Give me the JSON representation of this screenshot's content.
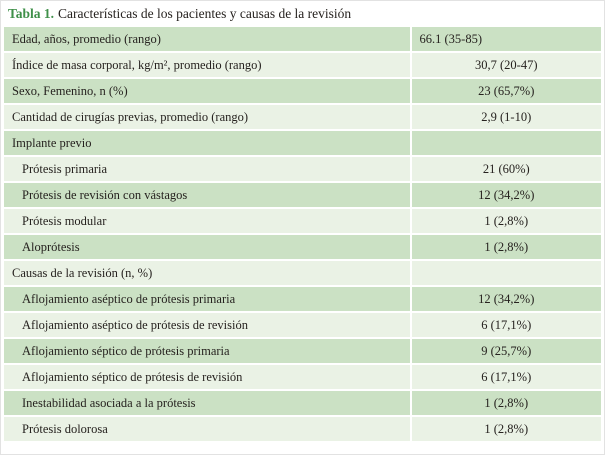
{
  "title": {
    "label": "Tabla 1.",
    "text": "Características de los pacientes y causas de la revisión"
  },
  "colors": {
    "green_row": "#cbe1c4",
    "light_row": "#eaf2e5",
    "title_green": "#3f9049",
    "text": "#26221f"
  },
  "table": {
    "rows": [
      {
        "label": "Edad, años, promedio (rango)",
        "value": "66.1 (35-85)",
        "indent": false,
        "section": false,
        "value_align": "left"
      },
      {
        "label": "Índice de masa corporal, kg/m², promedio (rango)",
        "value": "30,7 (20-47)",
        "indent": false,
        "section": false,
        "value_align": "center"
      },
      {
        "label": "Sexo, Femenino, n (%)",
        "value": "23 (65,7%)",
        "indent": false,
        "section": false,
        "value_align": "center"
      },
      {
        "label": "Cantidad de cirugías previas, promedio (rango)",
        "value": "2,9 (1-10)",
        "indent": false,
        "section": false,
        "value_align": "center"
      },
      {
        "label": "Implante previo",
        "value": "",
        "indent": false,
        "section": true,
        "value_align": "center"
      },
      {
        "label": "Prótesis primaria",
        "value": "21 (60%)",
        "indent": true,
        "section": false,
        "value_align": "center"
      },
      {
        "label": "Prótesis de revisión con vástagos",
        "value": "12 (34,2%)",
        "indent": true,
        "section": false,
        "value_align": "center"
      },
      {
        "label": "Prótesis modular",
        "value": "1 (2,8%)",
        "indent": true,
        "section": false,
        "value_align": "center"
      },
      {
        "label": "Aloprótesis",
        "value": "1 (2,8%)",
        "indent": true,
        "section": false,
        "value_align": "center"
      },
      {
        "label": "Causas de la revisión (n, %)",
        "value": "",
        "indent": false,
        "section": true,
        "value_align": "center"
      },
      {
        "label": "Aflojamiento aséptico de prótesis primaria",
        "value": "12 (34,2%)",
        "indent": true,
        "section": false,
        "value_align": "center"
      },
      {
        "label": "Aflojamiento aséptico de prótesis de revisión",
        "value": "6 (17,1%)",
        "indent": true,
        "section": false,
        "value_align": "center"
      },
      {
        "label": "Aflojamiento séptico de prótesis primaria",
        "value": "9 (25,7%)",
        "indent": true,
        "section": false,
        "value_align": "center"
      },
      {
        "label": "Aflojamiento séptico de prótesis de revisión",
        "value": "6 (17,1%)",
        "indent": true,
        "section": false,
        "value_align": "center"
      },
      {
        "label": "Inestabilidad asociada a la prótesis",
        "value": "1 (2,8%)",
        "indent": true,
        "section": false,
        "value_align": "center"
      },
      {
        "label": "Prótesis dolorosa",
        "value": "1 (2,8%)",
        "indent": true,
        "section": false,
        "value_align": "center"
      }
    ]
  }
}
